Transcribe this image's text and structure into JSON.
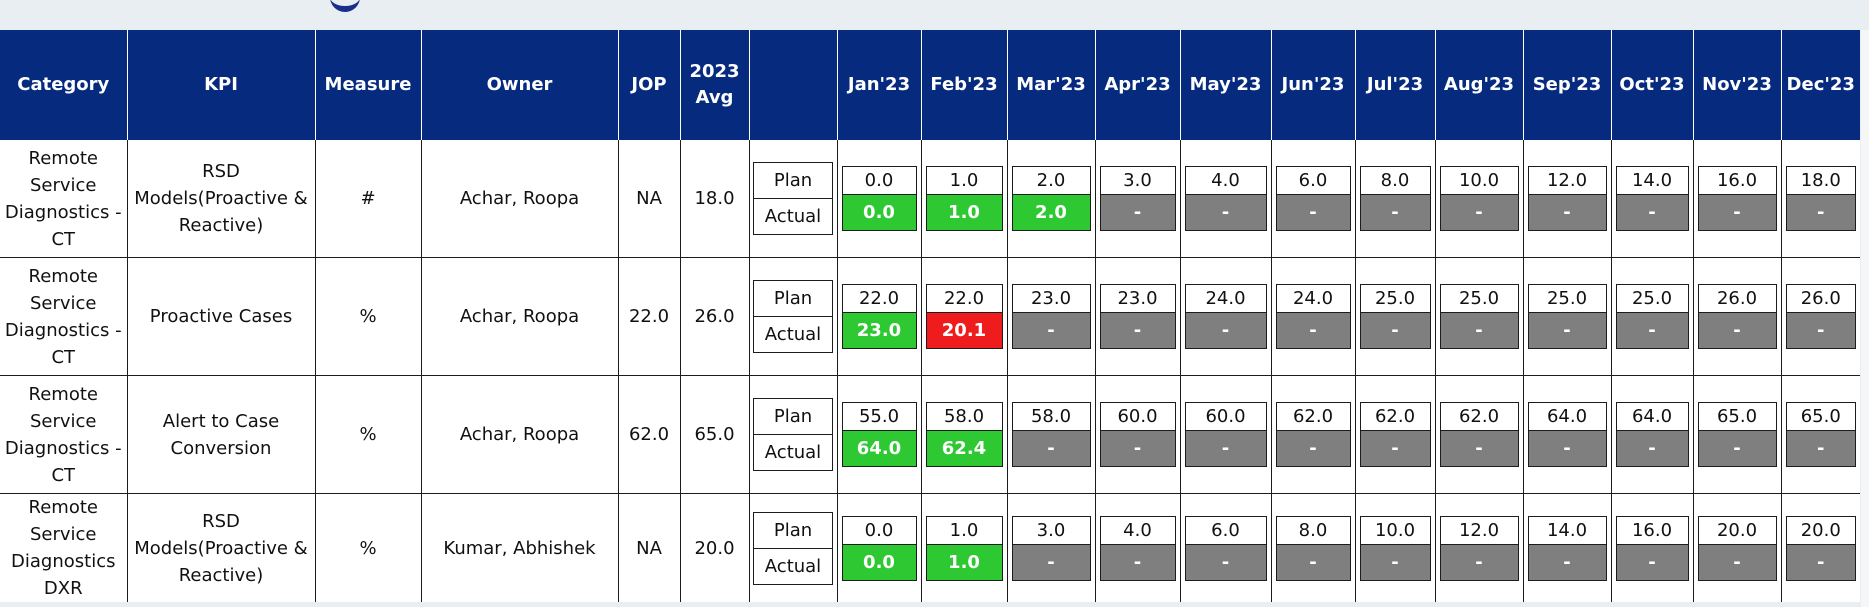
{
  "headers": [
    "Category",
    "KPI",
    "Measure",
    "Owner",
    "JOP",
    "2023 Avg",
    "",
    "Jan'23",
    "Feb'23",
    "Mar'23",
    "Apr'23",
    "May'23",
    "Jun'23",
    "Jul'23",
    "Aug'23",
    "Sep'23",
    "Oct'23",
    "Nov'23",
    "Dec'23"
  ],
  "labels": {
    "plan": "Plan",
    "actual": "Actual"
  },
  "colors": {
    "header_bg": "#052a7e",
    "met": "#2ec832",
    "missed": "#ee1c1c",
    "no_data": "#7f7f7f"
  },
  "rows": [
    {
      "category": "Remote Service Diagnostics - CT",
      "kpi": "RSD Models(Proactive & Reactive)",
      "measure": "#",
      "owner": "Achar, Roopa",
      "jop": "NA",
      "avg": "18.0",
      "plan": [
        "0.0",
        "1.0",
        "2.0",
        "3.0",
        "4.0",
        "6.0",
        "8.0",
        "10.0",
        "12.0",
        "14.0",
        "16.0",
        "18.0"
      ],
      "actual": [
        "0.0",
        "1.0",
        "2.0",
        "-",
        "-",
        "-",
        "-",
        "-",
        "-",
        "-",
        "-",
        "-"
      ],
      "status": [
        "green",
        "green",
        "green",
        "gray",
        "gray",
        "gray",
        "gray",
        "gray",
        "gray",
        "gray",
        "gray",
        "gray"
      ]
    },
    {
      "category": "Remote Service Diagnostics - CT",
      "kpi": "Proactive Cases",
      "measure": "%",
      "owner": "Achar, Roopa",
      "jop": "22.0",
      "avg": "26.0",
      "plan": [
        "22.0",
        "22.0",
        "23.0",
        "23.0",
        "24.0",
        "24.0",
        "25.0",
        "25.0",
        "25.0",
        "25.0",
        "26.0",
        "26.0"
      ],
      "actual": [
        "23.0",
        "20.1",
        "-",
        "-",
        "-",
        "-",
        "-",
        "-",
        "-",
        "-",
        "-",
        "-"
      ],
      "status": [
        "green",
        "red",
        "gray",
        "gray",
        "gray",
        "gray",
        "gray",
        "gray",
        "gray",
        "gray",
        "gray",
        "gray"
      ]
    },
    {
      "category": "Remote Service Diagnostics - CT",
      "kpi": "Alert to Case Conversion",
      "measure": "%",
      "owner": "Achar, Roopa",
      "jop": "62.0",
      "avg": "65.0",
      "plan": [
        "55.0",
        "58.0",
        "58.0",
        "60.0",
        "60.0",
        "62.0",
        "62.0",
        "62.0",
        "64.0",
        "64.0",
        "65.0",
        "65.0"
      ],
      "actual": [
        "64.0",
        "62.4",
        "-",
        "-",
        "-",
        "-",
        "-",
        "-",
        "-",
        "-",
        "-",
        "-"
      ],
      "status": [
        "green",
        "green",
        "gray",
        "gray",
        "gray",
        "gray",
        "gray",
        "gray",
        "gray",
        "gray",
        "gray",
        "gray"
      ]
    },
    {
      "category": "Remote Service Diagnostics DXR",
      "kpi": "RSD Models(Proactive & Reactive)",
      "measure": "%",
      "owner": "Kumar, Abhishek",
      "jop": "NA",
      "avg": "20.0",
      "plan": [
        "0.0",
        "1.0",
        "3.0",
        "4.0",
        "6.0",
        "8.0",
        "10.0",
        "12.0",
        "14.0",
        "16.0",
        "20.0",
        "20.0"
      ],
      "actual": [
        "0.0",
        "1.0",
        "-",
        "-",
        "-",
        "-",
        "-",
        "-",
        "-",
        "-",
        "-",
        "-"
      ],
      "status": [
        "green",
        "green",
        "gray",
        "gray",
        "gray",
        "gray",
        "gray",
        "gray",
        "gray",
        "gray",
        "gray",
        "gray"
      ]
    }
  ]
}
